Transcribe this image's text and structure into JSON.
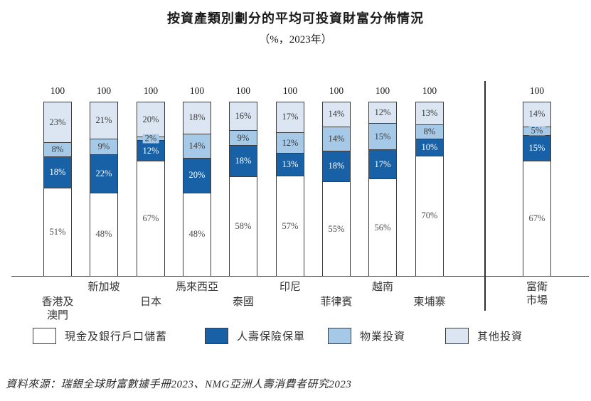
{
  "title": "按資產類別劃分的平均可投資財富分佈情況",
  "subtitle": "（%，2023年）",
  "source": "資料來源：瑞銀全球財富數據手冊2023、NMG亞洲人壽消費者研究2023",
  "colors": {
    "cash_white": "#ffffff",
    "life_insurance_dark_blue": "#1961a6",
    "property_medium_blue": "#a6c9e8",
    "other_light_blue": "#dce6f2",
    "bar_border": "#3c3c3c",
    "axis_line": "#2f2f2f"
  },
  "legend": [
    {
      "label": "現金及銀行戶口儲蓄",
      "color": "#ffffff",
      "text_color": "#4a4a4a"
    },
    {
      "label": "人壽保險保單",
      "color": "#1961a6",
      "text_color": "#ffffff"
    },
    {
      "label": "物業投資",
      "color": "#a6c9e8",
      "text_color": "#3a3a3a"
    },
    {
      "label": "其他投資",
      "color": "#dce6f2",
      "text_color": "#3a3a3a"
    }
  ],
  "chart_data": {
    "type": "bar",
    "stacked": true,
    "unit": "%",
    "year": "2023",
    "total_label": "100",
    "grid": false,
    "legend_position": "bottom",
    "separator_before_category": "富衛市場",
    "categories": [
      {
        "label": "香港及澳門",
        "lines": [
          "香港及",
          "澳門"
        ],
        "row": "lower"
      },
      {
        "label": "新加坡",
        "lines": [
          "新加坡"
        ],
        "row": "upper"
      },
      {
        "label": "日本",
        "lines": [
          "日本"
        ],
        "row": "lower"
      },
      {
        "label": "馬來西亞",
        "lines": [
          "馬來西亞"
        ],
        "row": "upper"
      },
      {
        "label": "泰國",
        "lines": [
          "泰國"
        ],
        "row": "lower"
      },
      {
        "label": "印尼",
        "lines": [
          "印尼"
        ],
        "row": "upper"
      },
      {
        "label": "菲律賓",
        "lines": [
          "菲律賓"
        ],
        "row": "lower"
      },
      {
        "label": "越南",
        "lines": [
          "越南"
        ],
        "row": "upper"
      },
      {
        "label": "柬埔寨",
        "lines": [
          "柬埔寨"
        ],
        "row": "lower"
      },
      {
        "label": "富衛市場",
        "lines": [
          "富衛",
          "市場"
        ],
        "row": "upper"
      }
    ],
    "series": [
      {
        "name": "現金及銀行戶口儲蓄",
        "color": "#ffffff",
        "label_color": "#4a4a4a",
        "values": [
          51,
          48,
          67,
          48,
          58,
          57,
          55,
          56,
          70,
          67
        ]
      },
      {
        "name": "人壽保險保單",
        "color": "#1961a6",
        "label_color": "#ffffff",
        "values": [
          18,
          22,
          12,
          20,
          18,
          13,
          18,
          17,
          10,
          15
        ]
      },
      {
        "name": "物業投資",
        "color": "#a6c9e8",
        "label_color": "#3a3a3a",
        "values": [
          8,
          9,
          2,
          14,
          9,
          12,
          14,
          15,
          8,
          5
        ]
      },
      {
        "name": "其他投資",
        "color": "#dce6f2",
        "label_color": "#3a3a3a",
        "values": [
          23,
          21,
          20,
          18,
          16,
          17,
          14,
          12,
          13,
          14
        ]
      }
    ]
  }
}
